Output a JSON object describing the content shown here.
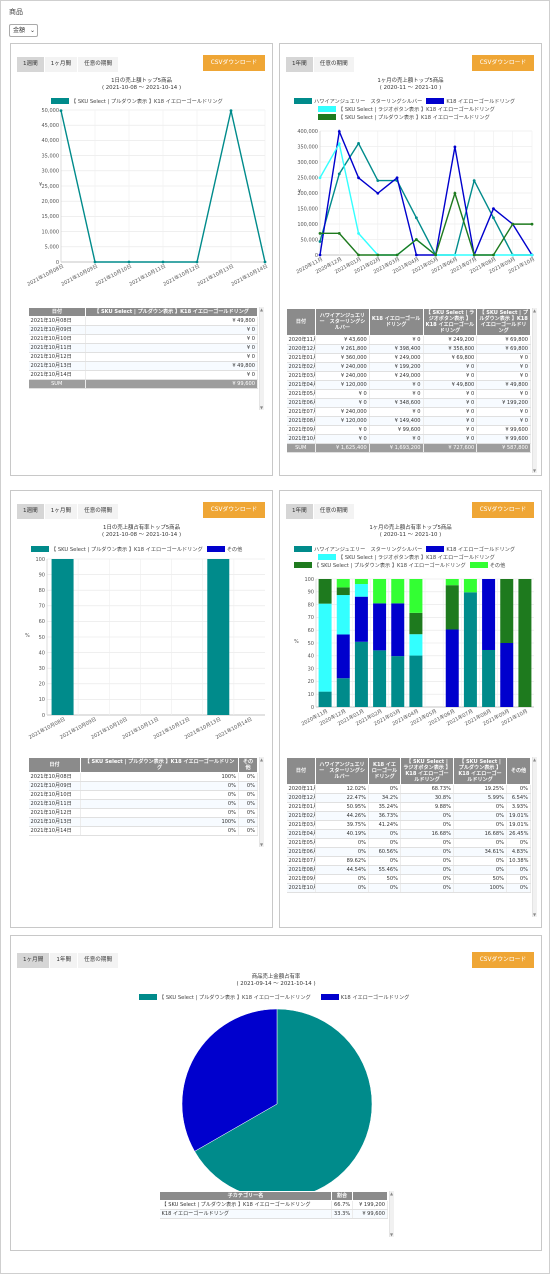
{
  "page": {
    "title": "商品",
    "metric_select": "金額"
  },
  "p1": {
    "tabs": [
      "1週間",
      "1ヶ月間",
      "任意の期間"
    ],
    "csv": "CSVダウンロード",
    "title": "1日の売上額トップ5商品",
    "sub": "( 2021-10-08 ～ 2021-10-14 )",
    "legend": [
      "【 SKU Select | プルダウン表示 】K18 イエローゴールドリング"
    ],
    "table": {
      "headers": [
        "日付",
        "【 SKU Select | プルダウン表示 】K18 イエローゴールドリング"
      ],
      "rows": [
        [
          "2021年10月08日",
          "¥ 49,800"
        ],
        [
          "2021年10月09日",
          "¥ 0"
        ],
        [
          "2021年10月10日",
          "¥ 0"
        ],
        [
          "2021年10月11日",
          "¥ 0"
        ],
        [
          "2021年10月12日",
          "¥ 0"
        ],
        [
          "2021年10月13日",
          "¥ 49,800"
        ],
        [
          "2021年10月14日",
          "¥ 0"
        ]
      ],
      "sum": [
        "SUM",
        "¥ 99,600"
      ]
    }
  },
  "p2": {
    "tabs": [
      "1年間",
      "任意の期間"
    ],
    "csv": "CSVダウンロード",
    "title": "1ヶ月の売上額トップ5商品",
    "sub": "( 2020-11 ～ 2021-10 )",
    "legend": [
      "ハワイアンジュエリー　スターリングシルバー",
      "K18 イエローゴールドリング",
      "【 SKU Select | ラジオボタン表示 】K18 イエローゴールドリング",
      "【 SKU Select | プルダウン表示 】K18 イエローゴールドリング"
    ],
    "table": {
      "headers": [
        "日付",
        "ハワイアンジュエリー　スターリングシルバー",
        "K18 イエローゴールドリング",
        "【 SKU Select | ラジオボタン表示 】K18 イエローゴールドリング",
        "【 SKU Select | プルダウン表示 】K18 イエローゴールドリング"
      ],
      "rows": [
        [
          "2020年11月",
          "¥ 43,600",
          "¥ 0",
          "¥ 249,200",
          "¥ 69,800"
        ],
        [
          "2020年12月",
          "¥ 261,800",
          "¥ 398,400",
          "¥ 358,800",
          "¥ 69,800"
        ],
        [
          "2021年01月",
          "¥ 360,000",
          "¥ 249,000",
          "¥ 69,800",
          "¥ 0"
        ],
        [
          "2021年02月",
          "¥ 240,000",
          "¥ 199,200",
          "¥ 0",
          "¥ 0"
        ],
        [
          "2021年03月",
          "¥ 240,000",
          "¥ 249,000",
          "¥ 0",
          "¥ 0"
        ],
        [
          "2021年04月",
          "¥ 120,000",
          "¥ 0",
          "¥ 49,800",
          "¥ 49,800"
        ],
        [
          "2021年05月",
          "¥ 0",
          "¥ 0",
          "¥ 0",
          "¥ 0"
        ],
        [
          "2021年06月",
          "¥ 0",
          "¥ 348,600",
          "¥ 0",
          "¥ 199,200"
        ],
        [
          "2021年07月",
          "¥ 240,000",
          "¥ 0",
          "¥ 0",
          "¥ 0"
        ],
        [
          "2021年08月",
          "¥ 120,000",
          "¥ 149,400",
          "¥ 0",
          "¥ 0"
        ],
        [
          "2021年09月",
          "¥ 0",
          "¥ 99,600",
          "¥ 0",
          "¥ 99,600"
        ],
        [
          "2021年10月",
          "¥ 0",
          "¥ 0",
          "¥ 0",
          "¥ 99,600"
        ]
      ],
      "sum": [
        "SUM",
        "¥ 1,625,400",
        "¥ 1,693,200",
        "¥ 727,600",
        "¥ 587,800"
      ]
    }
  },
  "p3": {
    "tabs": [
      "1週間",
      "1ヶ月間",
      "任意の期間"
    ],
    "csv": "CSVダウンロード",
    "title": "1日の売上額占有率トップ5商品",
    "sub": "( 2021-10-08 ～ 2021-10-14 )",
    "legend": [
      "【 SKU Select | プルダウン表示 】K18 イエローゴールドリング",
      "その他"
    ],
    "table": {
      "headers": [
        "日付",
        "【 SKU Select | プルダウン表示 】K18 イエローゴールドリング",
        "その他"
      ],
      "rows": [
        [
          "2021年10月08日",
          "100%",
          "0%"
        ],
        [
          "2021年10月09日",
          "0%",
          "0%"
        ],
        [
          "2021年10月10日",
          "0%",
          "0%"
        ],
        [
          "2021年10月11日",
          "0%",
          "0%"
        ],
        [
          "2021年10月12日",
          "0%",
          "0%"
        ],
        [
          "2021年10月13日",
          "100%",
          "0%"
        ],
        [
          "2021年10月14日",
          "0%",
          "0%"
        ]
      ]
    }
  },
  "p4": {
    "tabs": [
      "1年間",
      "任意の期間"
    ],
    "csv": "CSVダウンロード",
    "title": "1ヶ月の売上額占有率トップ5商品",
    "sub": "( 2020-11 ～ 2021-10 )",
    "legend": [
      "ハワイアンジュエリー　スターリングシルバー",
      "K18 イエローゴールドリング",
      "【 SKU Select | ラジオボタン表示 】K18 イエローゴールドリング",
      "【 SKU Select | プルダウン表示 】K18 イエローゴールドリング",
      "その他"
    ],
    "table": {
      "headers": [
        "日付",
        "ハワイアンジュエリー　スターリングシルバー",
        "K18 イエローゴールドリング",
        "【 SKU Select | ラジオボタン表示 】K18 イエローゴールドリング",
        "【 SKU Select | プルダウン表示 】K18 イエローゴールドリング",
        "その他"
      ],
      "rows": [
        [
          "2020年11月",
          "12.02%",
          "0%",
          "68.73%",
          "19.25%",
          "0%"
        ],
        [
          "2020年12月",
          "22.47%",
          "34.2%",
          "30.8%",
          "5.99%",
          "6.54%"
        ],
        [
          "2021年01月",
          "50.95%",
          "35.24%",
          "9.88%",
          "0%",
          "3.93%"
        ],
        [
          "2021年02月",
          "44.26%",
          "36.73%",
          "0%",
          "0%",
          "19.01%"
        ],
        [
          "2021年03月",
          "39.75%",
          "41.24%",
          "0%",
          "0%",
          "19.01%"
        ],
        [
          "2021年04月",
          "40.19%",
          "0%",
          "16.68%",
          "16.68%",
          "26.45%"
        ],
        [
          "2021年05月",
          "0%",
          "0%",
          "0%",
          "0%",
          "0%"
        ],
        [
          "2021年06月",
          "0%",
          "60.56%",
          "0%",
          "34.61%",
          "4.83%"
        ],
        [
          "2021年07月",
          "89.62%",
          "0%",
          "0%",
          "0%",
          "10.38%"
        ],
        [
          "2021年08月",
          "44.54%",
          "55.46%",
          "0%",
          "0%",
          "0%"
        ],
        [
          "2021年09月",
          "0%",
          "50%",
          "0%",
          "50%",
          "0%"
        ],
        [
          "2021年10月",
          "0%",
          "0%",
          "0%",
          "100%",
          "0%"
        ]
      ]
    }
  },
  "p5": {
    "tabs": [
      "1ヶ月間",
      "1年間",
      "任意の期間"
    ],
    "csv": "CSVダウンロード",
    "title": "商品売上金額占有率",
    "sub": "( 2021-09-14 ～ 2021-10-14 )",
    "legend": [
      "【 SKU Select | プルダウン表示 】K18 イエローゴールドリング",
      "K18 イエローゴールドリング"
    ],
    "table": {
      "headers": [
        "子カテゴリー名",
        "割合",
        ""
      ],
      "rows": [
        [
          "【 SKU Select | プルダウン表示 】K18 イエローゴールドリング",
          "66.7%",
          "¥ 199,200"
        ],
        [
          "K18 イエローゴールドリング",
          "33.3%",
          "¥ 99,600"
        ]
      ]
    }
  },
  "chart_data": [
    {
      "type": "line",
      "title": "1日の売上額トップ5商品",
      "x": [
        "2021年10月08日",
        "2021年10月09日",
        "2021年10月10日",
        "2021年10月11日",
        "2021年10月12日",
        "2021年10月13日",
        "2021年10月14日"
      ],
      "ylabel": "¥",
      "ylim": [
        0,
        50000
      ],
      "yticks": [
        "0",
        "5,000",
        "10,000",
        "15,000",
        "20,000",
        "25,000",
        "30,000",
        "35,000",
        "40,000",
        "45,000",
        "50,000"
      ],
      "series": [
        {
          "name": "【 SKU Select | プルダウン表示 】K18 イエローゴールドリング",
          "color": "#008b8b",
          "values": [
            49800,
            0,
            0,
            0,
            0,
            49800,
            0
          ]
        }
      ]
    },
    {
      "type": "line",
      "title": "1ヶ月の売上額トップ5商品",
      "x": [
        "2020年11月",
        "2020年12月",
        "2021年01月",
        "2021年02月",
        "2021年03月",
        "2021年04月",
        "2021年05月",
        "2021年06月",
        "2021年07月",
        "2021年08月",
        "2021年09月",
        "2021年10月"
      ],
      "ylabel": "¥",
      "ylim": [
        0,
        400000
      ],
      "yticks": [
        "0",
        "50,000",
        "100,000",
        "150,000",
        "200,000",
        "250,000",
        "300,000",
        "350,000",
        "400,000"
      ],
      "series": [
        {
          "name": "ハワイアンジュエリー　スターリングシルバー",
          "color": "#008b8b",
          "values": [
            43600,
            261800,
            360000,
            240000,
            240000,
            120000,
            0,
            0,
            240000,
            120000,
            0,
            0
          ]
        },
        {
          "name": "K18 イエローゴールドリング",
          "color": "#0000cd",
          "values": [
            0,
            398400,
            249000,
            199200,
            249000,
            0,
            0,
            348600,
            0,
            149400,
            99600,
            0
          ]
        },
        {
          "name": "【 SKU Select | ラジオボタン表示 】K18 イエローゴールドリング",
          "color": "#33ffff",
          "values": [
            249200,
            358800,
            69800,
            0,
            0,
            49800,
            0,
            0,
            0,
            0,
            0,
            0
          ]
        },
        {
          "name": "【 SKU Select | プルダウン表示 】K18 イエローゴールドリング",
          "color": "#1e7a1e",
          "values": [
            69800,
            69800,
            0,
            0,
            0,
            49800,
            0,
            199200,
            0,
            0,
            99600,
            99600
          ]
        }
      ]
    },
    {
      "type": "bar",
      "stacked": true,
      "title": "1日の売上額占有率トップ5商品",
      "x": [
        "2021年10月08日",
        "2021年10月09日",
        "2021年10月10日",
        "2021年10月11日",
        "2021年10月12日",
        "2021年10月13日",
        "2021年10月14日"
      ],
      "ylabel": "%",
      "ylim": [
        0,
        100
      ],
      "yticks": [
        "0",
        "10",
        "20",
        "30",
        "40",
        "50",
        "60",
        "70",
        "80",
        "90",
        "100"
      ],
      "series": [
        {
          "name": "【 SKU Select | プルダウン表示 】K18 イエローゴールドリング",
          "color": "#008b8b",
          "values": [
            100,
            0,
            0,
            0,
            0,
            100,
            0
          ]
        },
        {
          "name": "その他",
          "color": "#0000cd",
          "values": [
            0,
            0,
            0,
            0,
            0,
            0,
            0
          ]
        }
      ]
    },
    {
      "type": "bar",
      "stacked": true,
      "title": "1ヶ月の売上額占有率トップ5商品",
      "x": [
        "2020年11月",
        "2020年12月",
        "2021年01月",
        "2021年02月",
        "2021年03月",
        "2021年04月",
        "2021年05月",
        "2021年06月",
        "2021年07月",
        "2021年08月",
        "2021年09月",
        "2021年10月"
      ],
      "ylabel": "%",
      "ylim": [
        0,
        100
      ],
      "yticks": [
        "0",
        "10",
        "20",
        "30",
        "40",
        "50",
        "60",
        "70",
        "80",
        "90",
        "100"
      ],
      "series": [
        {
          "name": "ハワイアンジュエリー　スターリングシルバー",
          "color": "#008b8b",
          "values": [
            12.02,
            22.47,
            50.95,
            44.26,
            39.75,
            40.19,
            0,
            0,
            89.62,
            44.54,
            0,
            0
          ]
        },
        {
          "name": "K18 イエローゴールドリング",
          "color": "#0000cd",
          "values": [
            0,
            34.2,
            35.24,
            36.73,
            41.24,
            0,
            0,
            60.56,
            0,
            55.46,
            50,
            0
          ]
        },
        {
          "name": "【 SKU Select | ラジオボタン表示 】K18 イエローゴールドリング",
          "color": "#33ffff",
          "values": [
            68.73,
            30.8,
            9.88,
            0,
            0,
            16.68,
            0,
            0,
            0,
            0,
            0,
            0
          ]
        },
        {
          "name": "【 SKU Select | プルダウン表示 】K18 イエローゴールドリング",
          "color": "#1e7a1e",
          "values": [
            19.25,
            5.99,
            0,
            0,
            0,
            16.68,
            0,
            34.61,
            0,
            0,
            50,
            100
          ]
        },
        {
          "name": "その他",
          "color": "#33ff33",
          "values": [
            0,
            6.54,
            3.93,
            19.01,
            19.01,
            26.45,
            0,
            4.83,
            10.38,
            0,
            0,
            0
          ]
        }
      ]
    },
    {
      "type": "pie",
      "title": "商品売上金額占有率",
      "categories": [
        "【 SKU Select | プルダウン表示 】K18 イエローゴールドリング",
        "K18 イエローゴールドリング"
      ],
      "values": [
        66.7,
        33.3
      ],
      "colors": [
        "#008b8b",
        "#0000cd"
      ]
    }
  ]
}
